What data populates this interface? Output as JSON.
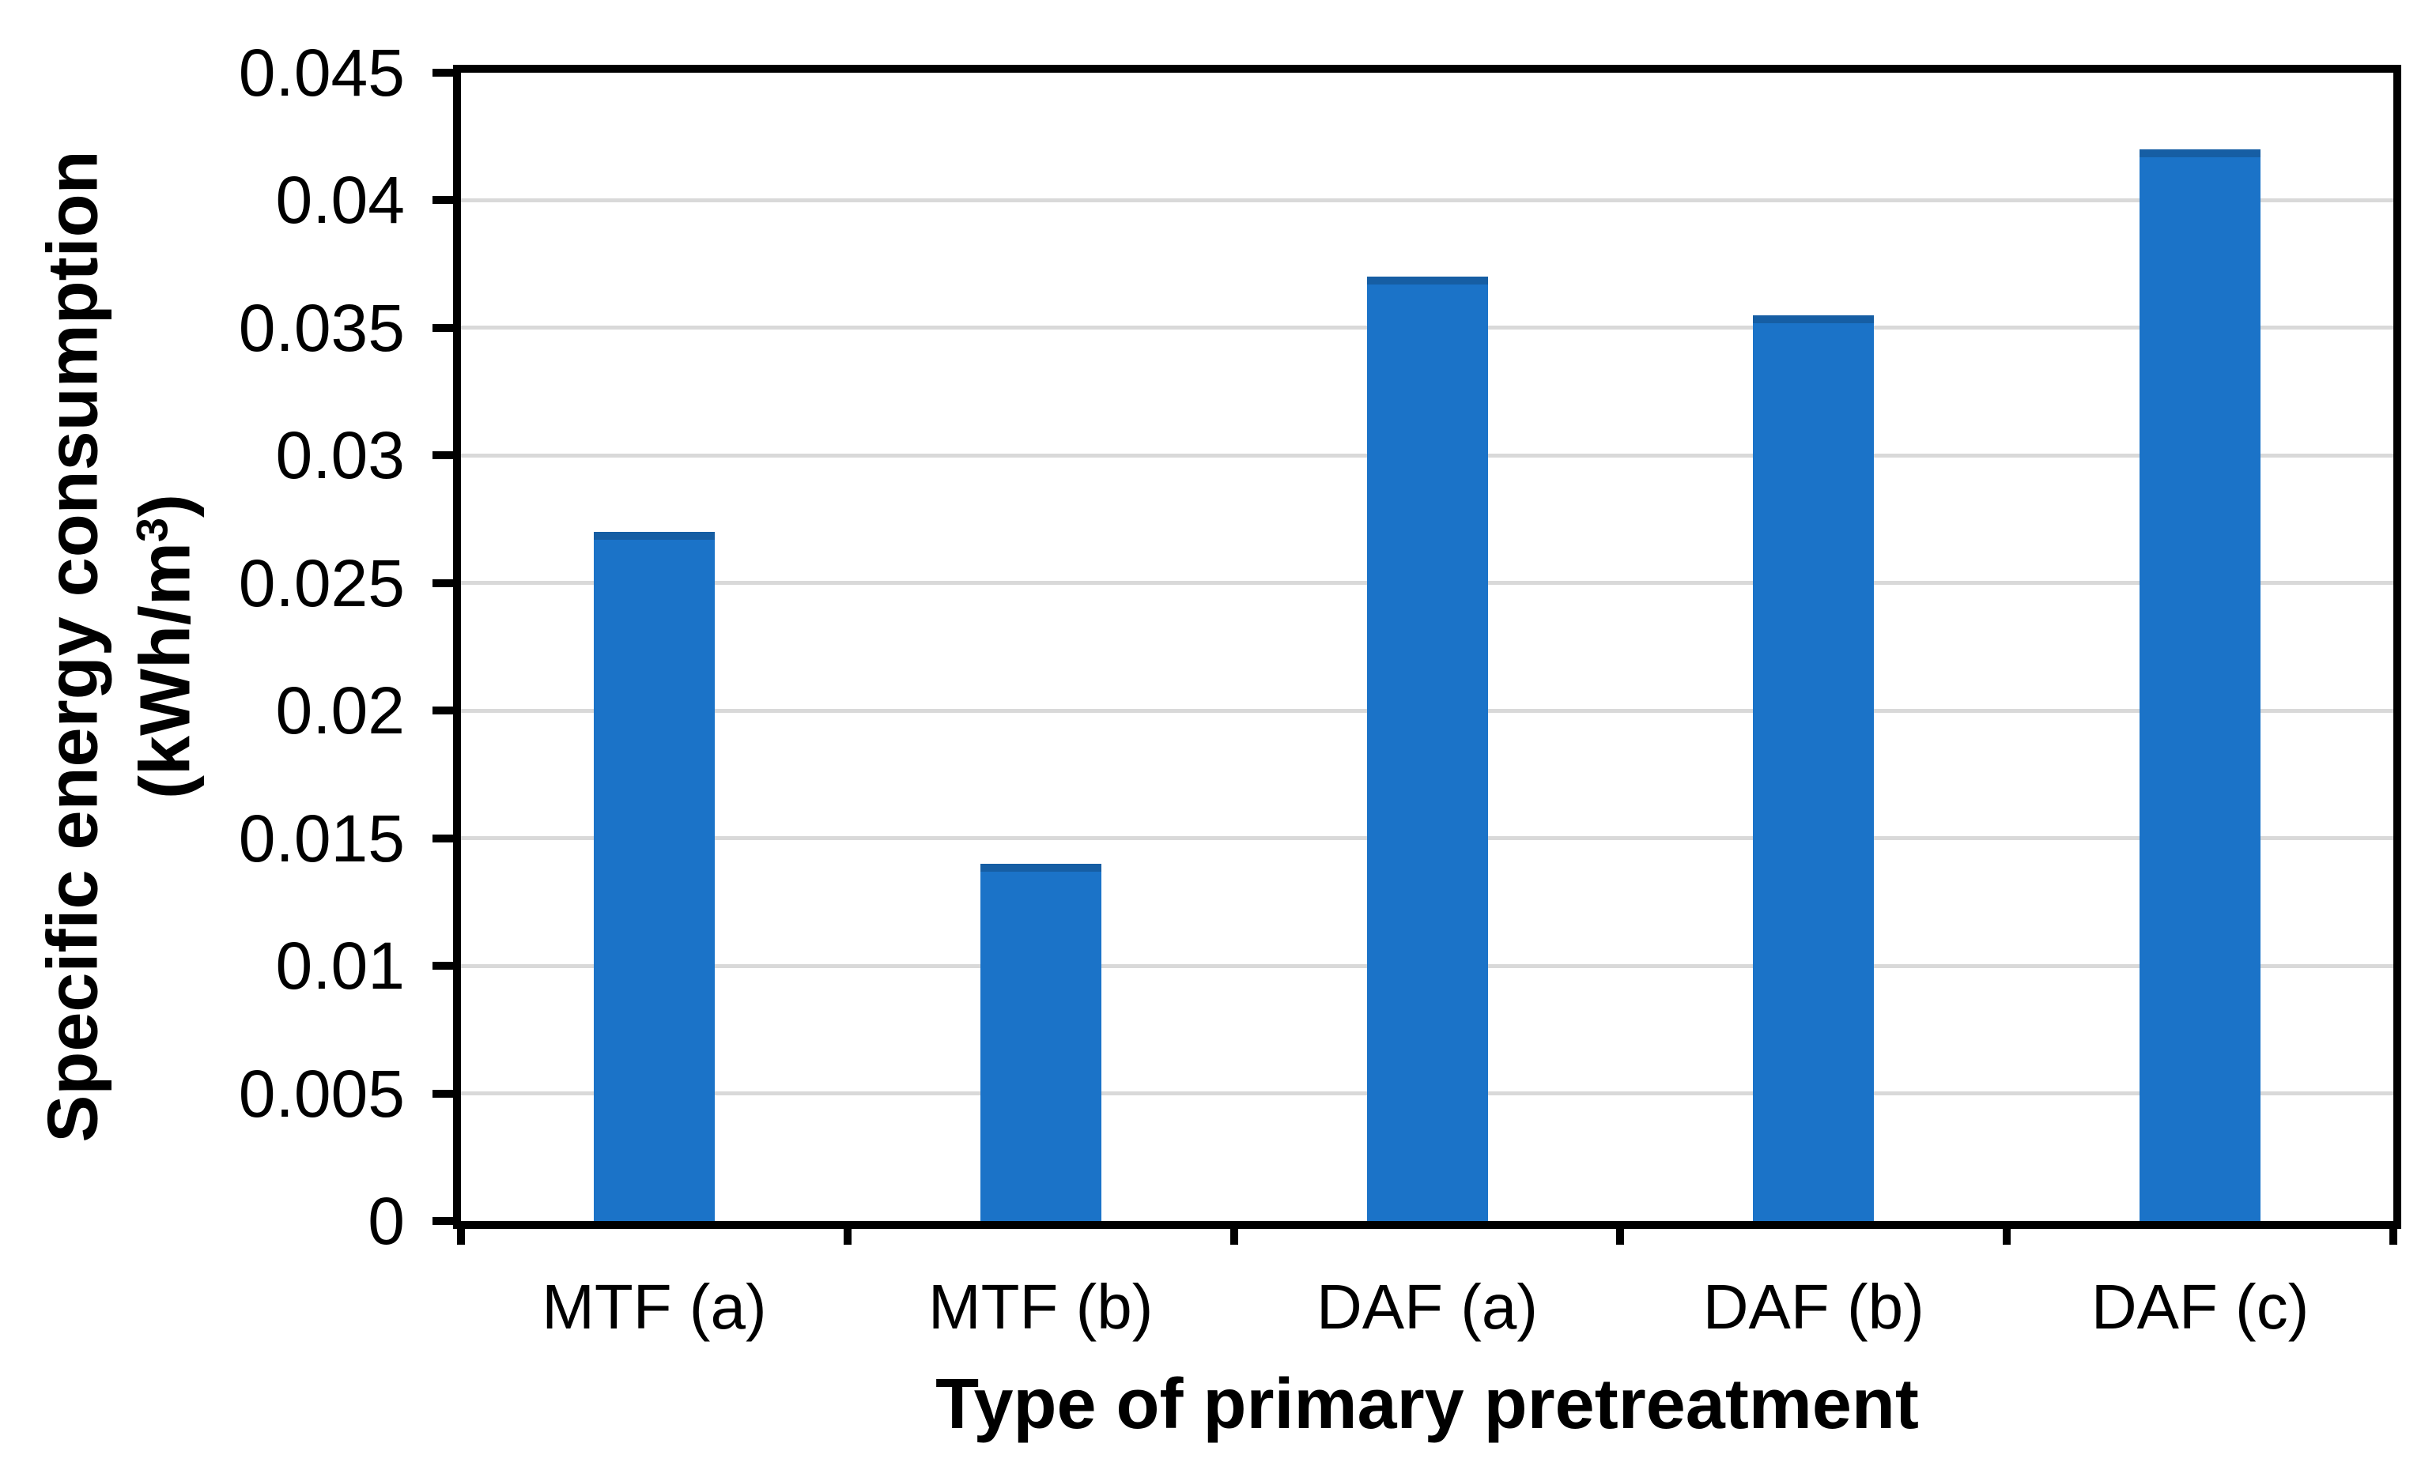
{
  "chart_data": {
    "type": "bar",
    "title": "",
    "categories": [
      "MTF (a)",
      "MTF (b)",
      "DAF (a)",
      "DAF (b)",
      "DAF (c)"
    ],
    "values": [
      0.027,
      0.014,
      0.037,
      0.0355,
      0.042
    ],
    "xlabel": "Type of primary pretreatment",
    "ylabel": {
      "line1": "Specific energy consumption",
      "line2_prefix": "(kWh/m",
      "line2_sup": "3",
      "line2_suffix": ")"
    },
    "ylim": [
      0,
      0.045
    ],
    "ytick_labels": [
      "0",
      "0.005",
      "0.01",
      "0.015",
      "0.02",
      "0.025",
      "0.03",
      "0.035",
      "0.04",
      "0.045"
    ],
    "grid": true,
    "legend": false,
    "colors": {
      "bar": "#1b73c8",
      "gridline": "#d9d9d9",
      "axis": "#000000",
      "background": "#ffffff"
    }
  }
}
